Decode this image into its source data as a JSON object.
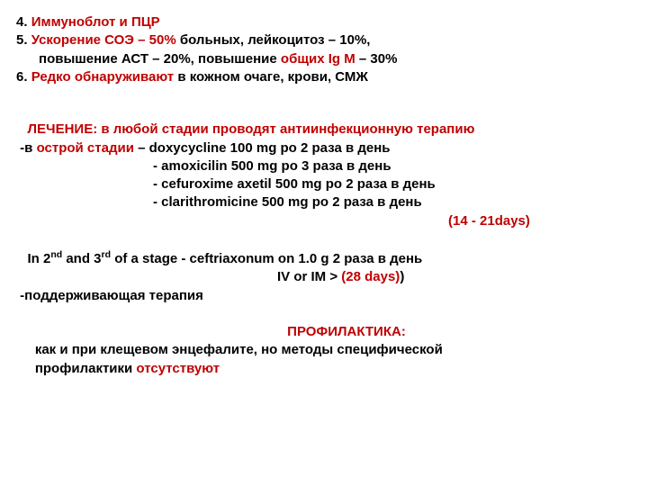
{
  "item4_num": "  4. ",
  "item4_text": "Иммуноблот и ПЦР",
  "item5_num": "  5. ",
  "item5_a": "Ускорение СОЭ – 50%",
  "item5_b": " больных, лейкоцитоз – 10%,",
  "item5_c": "      повышение АСТ – 20%, повышение ",
  "item5_d": "общих Ig М",
  "item5_e": " – 30%",
  "item6_num": "  6. ",
  "item6_a": "Редко обнаруживают",
  "item6_b": " в кожном очаге, крови, СМЖ",
  "treat_title": "   ЛЕЧЕНИЕ: в любой стадии проводят антиинфекционную терапию",
  "acute_a": " -в ",
  "acute_b": "острой стадии",
  "acute_c": " –   doxycycline 100 mg po 2 раза в день",
  "med2": "- amoxicilin 500 mg po 3 раза в день",
  "med3": "- cefuroxime axetil 500 mg po 2 раза в день",
  "med4": " - clarithromicine 500 mg po 2 раза в день",
  "dur1": "(14 - 21days)",
  "stage_a": "   In 2",
  "stage_nd": "nd",
  "stage_b": " and 3",
  "stage_rd": "rd",
  "stage_c": " of a stage - ceftriaxonum on 1.0 g  2 раза в день",
  "route": "IV or IM   > ",
  "dur2": "(28 days)",
  "paren": ")",
  "support": " -поддерживающая терапия",
  "prof_title": "ПРОФИЛАКТИКА:",
  "prof_a": "     как и при клещевом энцефалите, но методы специфической",
  "prof_b": "     профилактики ",
  "prof_c": "отсутствуют"
}
